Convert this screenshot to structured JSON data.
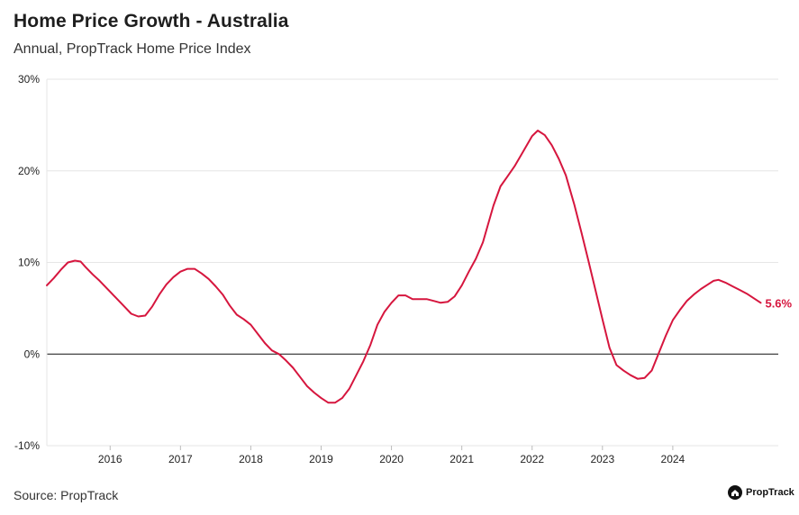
{
  "header": {
    "title": "Home Price Growth - Australia",
    "subtitle": "Annual, PropTrack Home Price Index"
  },
  "footer": {
    "source": "Source: PropTrack",
    "brand": "PropTrack"
  },
  "colors": {
    "line": "#d6163e",
    "zero_line": "#111111",
    "grid": "#e6e6e6"
  },
  "chart_data": {
    "type": "line",
    "title": "Home Price Growth - Australia",
    "subtitle": "Annual, PropTrack Home Price Index",
    "xlabel": "",
    "ylabel": "",
    "xlim": [
      2015.1,
      2025.5
    ],
    "ylim": [
      -10,
      30
    ],
    "y_ticks": [
      -10,
      0,
      10,
      20,
      30
    ],
    "y_tick_labels": [
      "-10%",
      "0%",
      "10%",
      "20%",
      "30%"
    ],
    "x_ticks": [
      2016,
      2017,
      2018,
      2019,
      2020,
      2021,
      2022,
      2023,
      2024
    ],
    "x_tick_labels": [
      "2016",
      "2017",
      "2018",
      "2019",
      "2020",
      "2021",
      "2022",
      "2023",
      "2024"
    ],
    "grid": "horizontal",
    "end_label": "5.6%",
    "series": [
      {
        "values": [
          [
            2015.1,
            7.5
          ],
          [
            2015.2,
            8.3
          ],
          [
            2015.3,
            9.2
          ],
          [
            2015.4,
            10.0
          ],
          [
            2015.5,
            10.2
          ],
          [
            2015.58,
            10.1
          ],
          [
            2015.65,
            9.5
          ],
          [
            2015.75,
            8.7
          ],
          [
            2015.85,
            8.0
          ],
          [
            2016.0,
            6.8
          ],
          [
            2016.1,
            6.0
          ],
          [
            2016.2,
            5.2
          ],
          [
            2016.3,
            4.4
          ],
          [
            2016.4,
            4.1
          ],
          [
            2016.5,
            4.2
          ],
          [
            2016.6,
            5.2
          ],
          [
            2016.7,
            6.5
          ],
          [
            2016.8,
            7.6
          ],
          [
            2016.9,
            8.4
          ],
          [
            2017.0,
            9.0
          ],
          [
            2017.1,
            9.3
          ],
          [
            2017.2,
            9.3
          ],
          [
            2017.3,
            8.8
          ],
          [
            2017.4,
            8.2
          ],
          [
            2017.5,
            7.4
          ],
          [
            2017.6,
            6.5
          ],
          [
            2017.7,
            5.3
          ],
          [
            2017.8,
            4.3
          ],
          [
            2017.9,
            3.8
          ],
          [
            2018.0,
            3.2
          ],
          [
            2018.1,
            2.2
          ],
          [
            2018.2,
            1.2
          ],
          [
            2018.3,
            0.4
          ],
          [
            2018.4,
            0.0
          ],
          [
            2018.5,
            -0.7
          ],
          [
            2018.6,
            -1.5
          ],
          [
            2018.7,
            -2.5
          ],
          [
            2018.8,
            -3.5
          ],
          [
            2018.9,
            -4.2
          ],
          [
            2019.0,
            -4.8
          ],
          [
            2019.1,
            -5.3
          ],
          [
            2019.2,
            -5.3
          ],
          [
            2019.3,
            -4.8
          ],
          [
            2019.4,
            -3.8
          ],
          [
            2019.5,
            -2.3
          ],
          [
            2019.6,
            -0.8
          ],
          [
            2019.7,
            1.0
          ],
          [
            2019.8,
            3.2
          ],
          [
            2019.9,
            4.6
          ],
          [
            2020.0,
            5.6
          ],
          [
            2020.1,
            6.4
          ],
          [
            2020.2,
            6.4
          ],
          [
            2020.3,
            6.0
          ],
          [
            2020.4,
            6.0
          ],
          [
            2020.5,
            6.0
          ],
          [
            2020.6,
            5.8
          ],
          [
            2020.7,
            5.6
          ],
          [
            2020.8,
            5.7
          ],
          [
            2020.9,
            6.3
          ],
          [
            2021.0,
            7.5
          ],
          [
            2021.1,
            9.0
          ],
          [
            2021.2,
            10.4
          ],
          [
            2021.3,
            12.2
          ],
          [
            2021.45,
            16.2
          ],
          [
            2021.55,
            18.3
          ],
          [
            2021.65,
            19.4
          ],
          [
            2021.75,
            20.5
          ],
          [
            2021.85,
            21.8
          ],
          [
            2022.0,
            23.8
          ],
          [
            2022.08,
            24.4
          ],
          [
            2022.18,
            23.9
          ],
          [
            2022.28,
            22.8
          ],
          [
            2022.38,
            21.3
          ],
          [
            2022.48,
            19.5
          ],
          [
            2022.6,
            16.3
          ],
          [
            2022.7,
            13.3
          ],
          [
            2022.8,
            10.2
          ],
          [
            2022.9,
            7.0
          ],
          [
            2023.0,
            3.8
          ],
          [
            2023.1,
            0.7
          ],
          [
            2023.2,
            -1.2
          ],
          [
            2023.3,
            -1.8
          ],
          [
            2023.4,
            -2.3
          ],
          [
            2023.5,
            -2.7
          ],
          [
            2023.6,
            -2.6
          ],
          [
            2023.7,
            -1.8
          ],
          [
            2023.8,
            0.1
          ],
          [
            2023.9,
            2.0
          ],
          [
            2024.0,
            3.7
          ],
          [
            2024.1,
            4.8
          ],
          [
            2024.2,
            5.8
          ],
          [
            2024.3,
            6.5
          ],
          [
            2024.4,
            7.1
          ],
          [
            2024.5,
            7.6
          ],
          [
            2024.58,
            8.0
          ],
          [
            2024.65,
            8.1
          ],
          [
            2024.75,
            7.8
          ],
          [
            2024.85,
            7.4
          ],
          [
            2024.95,
            7.0
          ],
          [
            2025.05,
            6.6
          ],
          [
            2025.15,
            6.1
          ],
          [
            2025.25,
            5.6
          ]
        ]
      }
    ]
  }
}
